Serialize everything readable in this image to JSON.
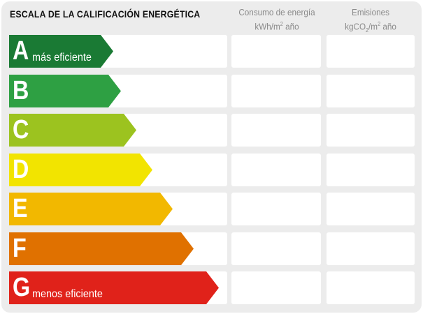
{
  "title": "ESCALA DE LA CALIFICACIÓN ENERGÉTICA",
  "columns": [
    {
      "line1": "Consumo de energía",
      "line2_pre": "kWh/m",
      "line2_sup": "2",
      "line2_post": " año"
    },
    {
      "line1": "Emisiones",
      "line2_pre": "kgCO",
      "line2_sub": "2",
      "line2_mid": "/m",
      "line2_sup": "2",
      "line2_post": " año"
    }
  ],
  "ratings": [
    {
      "letter": "A",
      "label": "más eficiente",
      "color": "#1a7a34"
    },
    {
      "letter": "B",
      "label": "",
      "color": "#2ea043"
    },
    {
      "letter": "C",
      "label": "",
      "color": "#9cc31f"
    },
    {
      "letter": "D",
      "label": "",
      "color": "#f2e400"
    },
    {
      "letter": "E",
      "label": "",
      "color": "#f2b800"
    },
    {
      "letter": "F",
      "label": "",
      "color": "#e07100"
    },
    {
      "letter": "G",
      "label": "menos eficiente",
      "color": "#e0221a"
    }
  ]
}
